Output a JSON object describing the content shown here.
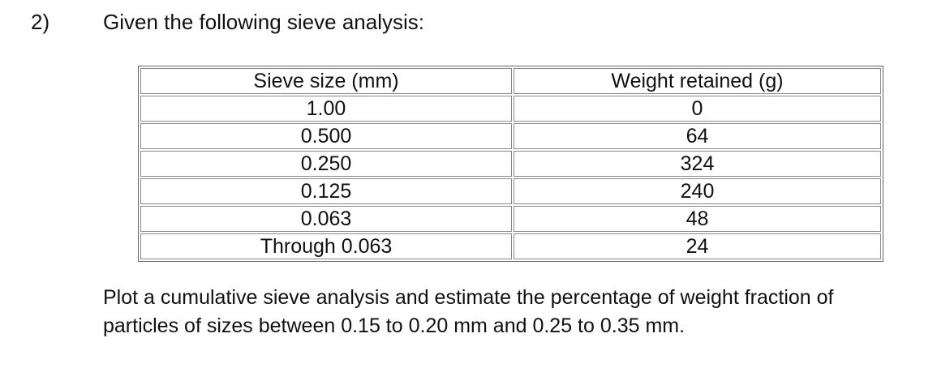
{
  "problem": {
    "number": "2)",
    "intro": "Given the following sieve analysis:",
    "table": {
      "header": [
        "Sieve size (mm)",
        "Weight retained (g)"
      ],
      "rows": [
        [
          "1.00",
          "0"
        ],
        [
          "0.500",
          "64"
        ],
        [
          "0.250",
          "324"
        ],
        [
          "0.125",
          "240"
        ],
        [
          "0.063",
          "48"
        ],
        [
          "Through 0.063",
          "24"
        ]
      ]
    },
    "question": "Plot a cumulative sieve analysis and estimate the percentage of weight fraction of particles of sizes between 0.15 to 0.20 mm and 0.25 to 0.35 mm."
  }
}
